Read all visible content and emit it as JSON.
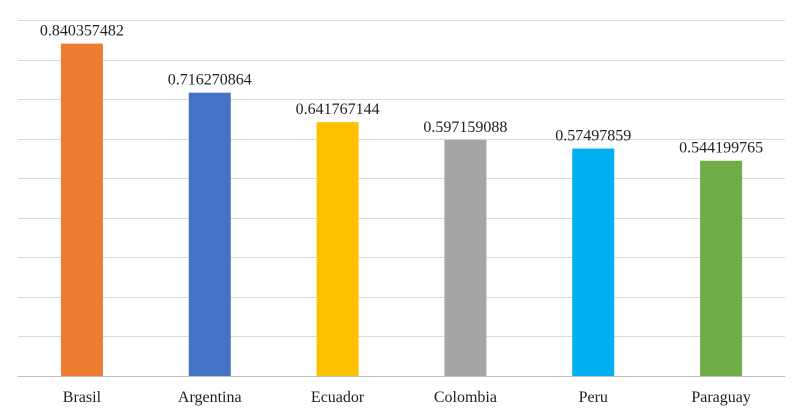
{
  "chart_data": {
    "type": "bar",
    "categories": [
      "Brasil",
      "Argentina",
      "Ecuador",
      "Colombia",
      "Peru",
      "Paraguay"
    ],
    "values": [
      0.840357482,
      0.716270864,
      0.641767144,
      0.597159088,
      0.57497859,
      0.544199765
    ],
    "value_labels": [
      "0.840357482",
      "0.716270864",
      "0.641767144",
      "0.597159088",
      "0.57497859",
      "0.544199765"
    ],
    "colors": [
      "#ed7d31",
      "#4472c4",
      "#ffc000",
      "#a5a5a5",
      "#00b0f0",
      "#70ad47"
    ],
    "title": "",
    "xlabel": "",
    "ylabel": "",
    "ylim": [
      0,
      0.9
    ],
    "grid": true,
    "legend": "none"
  }
}
